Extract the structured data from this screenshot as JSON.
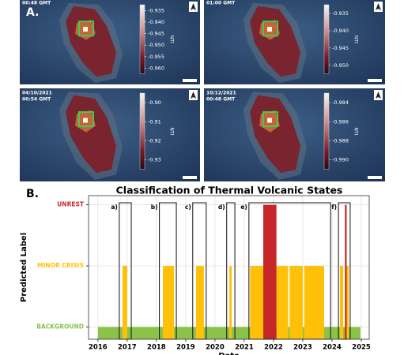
{
  "figure_a": {
    "label": "A.",
    "panels": [
      {
        "time": "00:48 GMT",
        "colorbar_label": "NTI",
        "colorbar_ticks": [
          "-0.935",
          "-0.940",
          "-0.945",
          "-0.950",
          "-0.955",
          "-0.960"
        ]
      },
      {
        "time": "01:00 GMT",
        "colorbar_label": "NTI",
        "colorbar_ticks": [
          "-0.935",
          "-0.940",
          "-0.945",
          "-0.950"
        ]
      },
      {
        "date": "04/10/2021",
        "time": "00:54 GMT",
        "colorbar_label": "NTI",
        "colorbar_ticks": [
          "-0.90",
          "-0.91",
          "-0.92",
          "-0.93"
        ]
      },
      {
        "date": "10/12/2021",
        "time": "00:48 GMT",
        "colorbar_label": "NTI",
        "colorbar_ticks": [
          "-0.984",
          "-0.986",
          "-0.988",
          "-0.990"
        ]
      }
    ]
  },
  "chart_data": {
    "type": "timeline",
    "panel_label": "B.",
    "title": "Classification of Thermal Volcanic States",
    "ylabel": "Predicted Label",
    "xlabel": "Date",
    "xlim": [
      2015.68,
      2025.27
    ],
    "xticks": [
      2016,
      2017,
      2018,
      2019,
      2020,
      2021,
      2022,
      2023,
      2024,
      2025
    ],
    "ylim": [
      -0.2,
      2.15
    ],
    "yticks": [
      {
        "value": 0,
        "label": "BACKGROUND"
      },
      {
        "value": 1,
        "label": "MINOR CRISIS"
      },
      {
        "value": 2,
        "label": "UNREST"
      }
    ],
    "level_colors": [
      "#8bc34a",
      "#ffc107",
      "#c62828"
    ],
    "grid": true,
    "periods": [
      {
        "start": 2016.0,
        "end": 2024.97,
        "level": 0
      },
      {
        "start": 2016.84,
        "end": 2017.0,
        "level": 1
      },
      {
        "start": 2018.22,
        "end": 2018.6,
        "level": 1
      },
      {
        "start": 2019.35,
        "end": 2019.62,
        "level": 1
      },
      {
        "start": 2020.49,
        "end": 2020.57,
        "level": 1
      },
      {
        "start": 2021.2,
        "end": 2021.65,
        "level": 1
      },
      {
        "start": 2022.1,
        "end": 2022.5,
        "level": 1
      },
      {
        "start": 2022.55,
        "end": 2023.0,
        "level": 1
      },
      {
        "start": 2023.05,
        "end": 2023.73,
        "level": 1
      },
      {
        "start": 2024.27,
        "end": 2024.38,
        "level": 1
      },
      {
        "start": 2024.46,
        "end": 2024.57,
        "level": 1
      },
      {
        "start": 2021.65,
        "end": 2022.1,
        "level": 2
      },
      {
        "start": 2024.44,
        "end": 2024.5,
        "level": 2
      }
    ],
    "boxes": [
      {
        "label": "a)",
        "start": 2016.73,
        "end": 2017.14
      },
      {
        "label": "b)",
        "start": 2018.1,
        "end": 2018.68
      },
      {
        "label": "c)",
        "start": 2019.24,
        "end": 2019.7
      },
      {
        "label": "d)",
        "start": 2020.4,
        "end": 2020.68
      },
      {
        "label": "e)",
        "start": 2021.16,
        "end": 2023.95
      },
      {
        "label": "f)",
        "start": 2024.22,
        "end": 2024.62
      }
    ]
  }
}
